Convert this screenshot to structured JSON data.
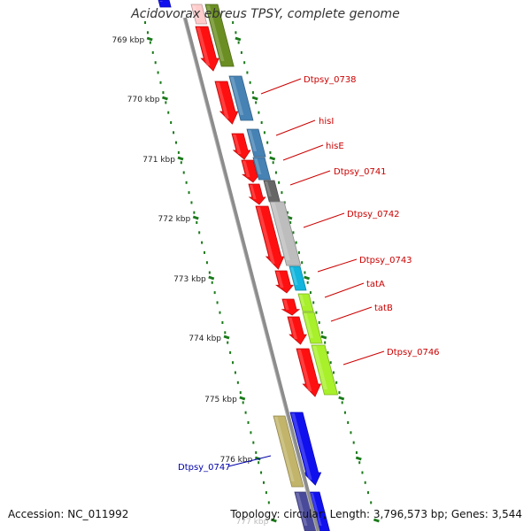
{
  "title": "Acidovorax ebreus TPSY, complete genome",
  "accession_text": "Accession: NC_011992",
  "summary_text": "Topology: circular; Length: 3,796,573 bp; Genes: 3,544",
  "colors": {
    "backbone": "#8c8c8c",
    "tick": "#1a7a1a",
    "gene_label": "#cc0000",
    "selected_label": "#0000aa",
    "red": "#ff1010",
    "olive": "#6b8e23",
    "steel": "#4682b4",
    "darkgray": "#666666",
    "lightgray": "#bdbdbd",
    "cyan": "#11b5dd",
    "lime": "#a8f02a",
    "khaki": "#c2b46a",
    "blue": "#1010ee",
    "slate": "#4a4a9a",
    "pink": "#ffcccc"
  },
  "ruler": [
    {
      "label": "769 kbp"
    },
    {
      "label": "770 kbp"
    },
    {
      "label": "771 kbp"
    },
    {
      "label": "772 kbp"
    },
    {
      "label": "773 kbp"
    },
    {
      "label": "774 kbp"
    },
    {
      "label": "775 kbp"
    },
    {
      "label": "776 kbp"
    },
    {
      "label": "777 kbp"
    }
  ],
  "gene_labels": [
    {
      "text": "Dtpsy_0738"
    },
    {
      "text": "hisI"
    },
    {
      "text": "hisE"
    },
    {
      "text": "Dtpsy_0741"
    },
    {
      "text": "Dtpsy_0742"
    },
    {
      "text": "Dtpsy_0743"
    },
    {
      "text": "tatA"
    },
    {
      "text": "tatB"
    },
    {
      "text": "Dtpsy_0746"
    },
    {
      "text": "Dtpsy_0747"
    }
  ]
}
